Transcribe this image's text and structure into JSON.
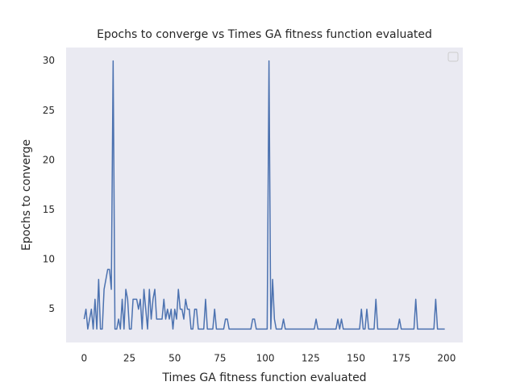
{
  "chart_data": {
    "type": "line",
    "title": "Epochs to converge vs Times GA fitness function evaluated",
    "x_label": "Times GA fitness function evaluated",
    "y_label": "Epochs to converge",
    "x": [
      0,
      1,
      2,
      3,
      4,
      5,
      6,
      7,
      8,
      9,
      10,
      11,
      12,
      13,
      14,
      15,
      16,
      17,
      18,
      19,
      20,
      21,
      22,
      23,
      24,
      25,
      26,
      27,
      28,
      29,
      30,
      31,
      32,
      33,
      34,
      35,
      36,
      37,
      38,
      39,
      40,
      41,
      42,
      43,
      44,
      45,
      46,
      47,
      48,
      49,
      50,
      51,
      52,
      53,
      54,
      55,
      56,
      57,
      58,
      59,
      60,
      61,
      62,
      63,
      64,
      65,
      66,
      67,
      68,
      69,
      70,
      71,
      72,
      73,
      74,
      75,
      76,
      77,
      78,
      79,
      80,
      81,
      82,
      83,
      84,
      85,
      86,
      87,
      88,
      89,
      90,
      91,
      92,
      93,
      94,
      95,
      96,
      97,
      98,
      99,
      100,
      101,
      102,
      103,
      104,
      105,
      106,
      107,
      108,
      109,
      110,
      111,
      112,
      113,
      114,
      115,
      116,
      117,
      118,
      119,
      120,
      121,
      122,
      123,
      124,
      125,
      126,
      127,
      128,
      129,
      130,
      131,
      132,
      133,
      134,
      135,
      136,
      137,
      138,
      139,
      140,
      141,
      142,
      143,
      144,
      145,
      146,
      147,
      148,
      149,
      150,
      151,
      152,
      153,
      154,
      155,
      156,
      157,
      158,
      159,
      160,
      161,
      162,
      163,
      164,
      165,
      166,
      167,
      168,
      169,
      170,
      171,
      172,
      173,
      174,
      175,
      176,
      177,
      178,
      179,
      180,
      181,
      182,
      183,
      184,
      185,
      186,
      187,
      188,
      189,
      190,
      191,
      192,
      193,
      194,
      195,
      196,
      197,
      198,
      199
    ],
    "series": [
      {
        "color": "#4c72b0",
        "values": [
          4,
          5,
          3,
          4,
          5,
          3,
          6,
          3,
          8,
          3,
          3,
          7,
          8,
          9,
          9,
          7,
          30,
          3,
          3,
          4,
          3,
          6,
          3,
          7,
          6,
          3,
          3,
          6,
          6,
          6,
          5,
          6,
          3,
          7,
          5,
          3,
          7,
          4,
          6,
          7,
          4,
          4,
          4,
          4,
          6,
          4,
          5,
          4,
          5,
          3,
          5,
          4,
          7,
          5,
          5,
          4,
          6,
          5,
          5,
          3,
          3,
          5,
          5,
          3,
          3,
          3,
          3,
          6,
          3,
          3,
          3,
          3,
          5,
          3,
          3,
          3,
          3,
          3,
          4,
          4,
          3,
          3,
          3,
          3,
          3,
          3,
          3,
          3,
          3,
          3,
          3,
          3,
          3,
          4,
          4,
          3,
          3,
          3,
          3,
          3,
          3,
          3,
          30,
          3,
          8,
          4,
          3,
          3,
          3,
          3,
          4,
          3,
          3,
          3,
          3,
          3,
          3,
          3,
          3,
          3,
          3,
          3,
          3,
          3,
          3,
          3,
          3,
          3,
          4,
          3,
          3,
          3,
          3,
          3,
          3,
          3,
          3,
          3,
          3,
          3,
          4,
          3,
          4,
          3,
          3,
          3,
          3,
          3,
          3,
          3,
          3,
          3,
          3,
          5,
          3,
          3,
          5,
          3,
          3,
          3,
          3,
          6,
          3,
          3,
          3,
          3,
          3,
          3,
          3,
          3,
          3,
          3,
          3,
          3,
          4,
          3,
          3,
          3,
          3,
          3,
          3,
          3,
          3,
          6,
          3,
          3,
          3,
          3,
          3,
          3,
          3,
          3,
          3,
          3,
          6,
          3,
          3,
          3,
          3,
          3
        ]
      }
    ],
    "xlim": [
      -9.95,
      208.95
    ],
    "xticks": [
      0,
      25,
      50,
      75,
      100,
      125,
      150,
      175,
      200
    ],
    "ylim": [
      1.65,
      31.35
    ],
    "yticks": [
      5,
      10,
      15,
      20,
      25,
      30
    ],
    "grid": false,
    "legend": "upper right"
  }
}
